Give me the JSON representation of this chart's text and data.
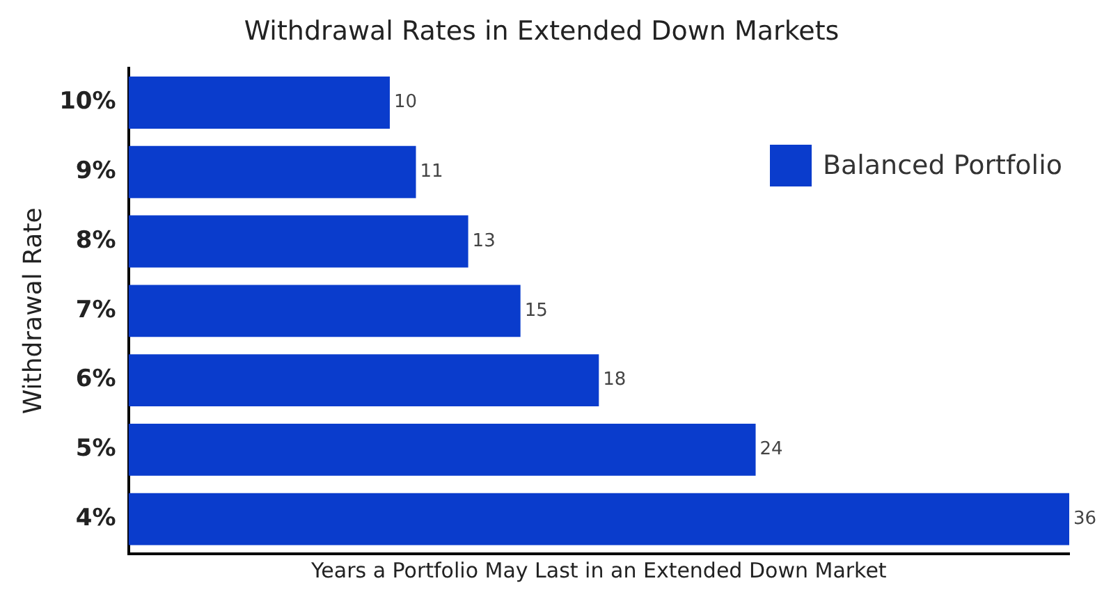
{
  "chart_data": {
    "type": "bar",
    "orientation": "horizontal",
    "title": "Withdrawal Rates in Extended Down Markets",
    "xlabel": "Years a Portfolio May Last in an Extended Down Market",
    "ylabel": "Withdrawal Rate",
    "categories": [
      "10%",
      "9%",
      "8%",
      "7%",
      "6%",
      "5%",
      "4%"
    ],
    "series": [
      {
        "name": "Balanced Portfolio",
        "color": "#0a3ccc",
        "values": [
          10,
          11,
          13,
          15,
          18,
          24,
          36
        ]
      }
    ],
    "xlim": [
      0,
      36
    ],
    "data_labels": true,
    "grid": false,
    "legend": "top right",
    "tick_labels": "y"
  }
}
